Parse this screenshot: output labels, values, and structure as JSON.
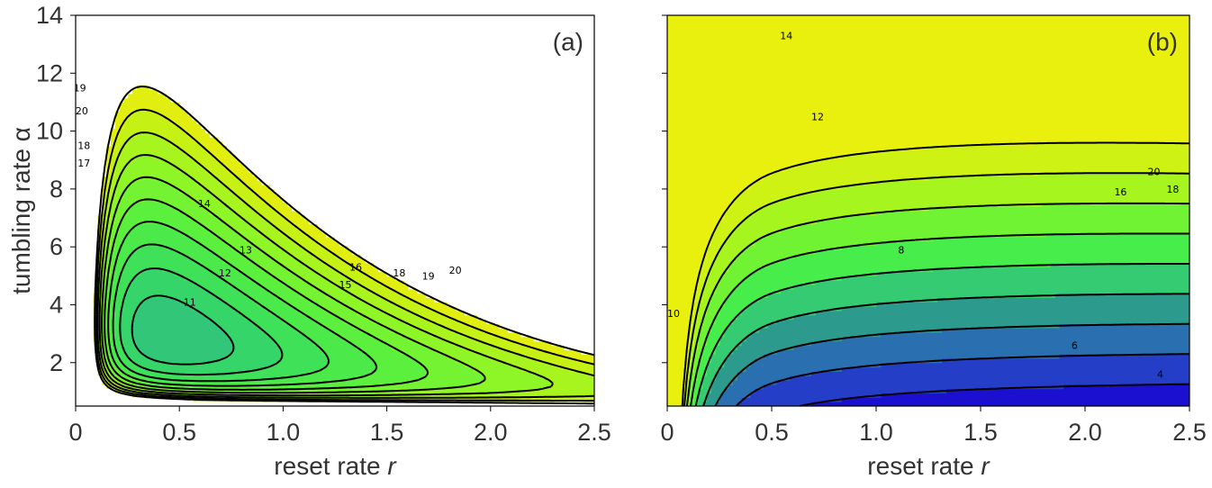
{
  "chart_data": [
    {
      "type": "contour",
      "panel_label": "(a)",
      "xlabel_text": "reset rate ",
      "xlabel_var": "r",
      "ylabel": "tumbling rate α",
      "xlim": [
        0,
        2.5
      ],
      "ylim": [
        0.5,
        14
      ],
      "xticks": [
        "0",
        "0.5",
        "1.0",
        "1.5",
        "2.0",
        "2.5"
      ],
      "yticks": [
        "2",
        "4",
        "6",
        "8",
        "10",
        "12",
        "14"
      ],
      "levels": [
        11,
        12,
        13,
        14,
        15,
        16,
        17,
        18,
        19,
        20
      ],
      "level_colors": [
        "#31c678",
        "#36d56a",
        "#3fe158",
        "#4bea4a",
        "#5cf03e",
        "#73f331",
        "#8ef526",
        "#a8f41e",
        "#c6f115",
        "#e2ee0f",
        "#f2ec0a"
      ],
      "labels": [
        {
          "text": "11",
          "x": 0.55,
          "y": 4.1
        },
        {
          "text": "12",
          "x": 0.72,
          "y": 5.1
        },
        {
          "text": "13",
          "x": 0.82,
          "y": 5.9
        },
        {
          "text": "14",
          "x": 0.62,
          "y": 7.5
        },
        {
          "text": "15",
          "x": 1.3,
          "y": 4.7
        },
        {
          "text": "16",
          "x": 1.35,
          "y": 5.3
        },
        {
          "text": "18",
          "x": 1.56,
          "y": 5.1
        },
        {
          "text": "19",
          "x": 1.7,
          "y": 5.0
        },
        {
          "text": "20",
          "x": 1.83,
          "y": 5.2
        },
        {
          "text": "17",
          "x": 0.04,
          "y": 8.9
        },
        {
          "text": "18",
          "x": 0.04,
          "y": 9.5
        },
        {
          "text": "20",
          "x": 0.03,
          "y": 10.7
        },
        {
          "text": "19",
          "x": 0.02,
          "y": 11.5
        }
      ]
    },
    {
      "type": "contour",
      "panel_label": "(b)",
      "xlabel_text": "reset rate ",
      "xlabel_var": "r",
      "xlim": [
        0,
        2.5
      ],
      "ylim": [
        0.5,
        14
      ],
      "xticks": [
        "0",
        "0.5",
        "1.0",
        "1.5",
        "2.0",
        "2.5"
      ],
      "levels": [
        4,
        6,
        8,
        10,
        12,
        14,
        16,
        18,
        20
      ],
      "level_colors": [
        "#1b10cf",
        "#243ec7",
        "#2a70b0",
        "#2c9b8e",
        "#35cb72",
        "#47ed4b",
        "#6ff332",
        "#a6f51f",
        "#cdf214",
        "#eaf00e"
      ],
      "labels": [
        {
          "text": "4",
          "x": 2.36,
          "y": 1.6
        },
        {
          "text": "6",
          "x": 1.95,
          "y": 2.6
        },
        {
          "text": "8",
          "x": 1.12,
          "y": 5.9
        },
        {
          "text": "10",
          "x": 0.03,
          "y": 3.7
        },
        {
          "text": "12",
          "x": 0.72,
          "y": 10.5
        },
        {
          "text": "14",
          "x": 0.57,
          "y": 13.3
        },
        {
          "text": "16",
          "x": 2.17,
          "y": 7.9
        },
        {
          "text": "18",
          "x": 2.42,
          "y": 8.0
        },
        {
          "text": "20",
          "x": 2.33,
          "y": 8.6
        }
      ]
    }
  ]
}
